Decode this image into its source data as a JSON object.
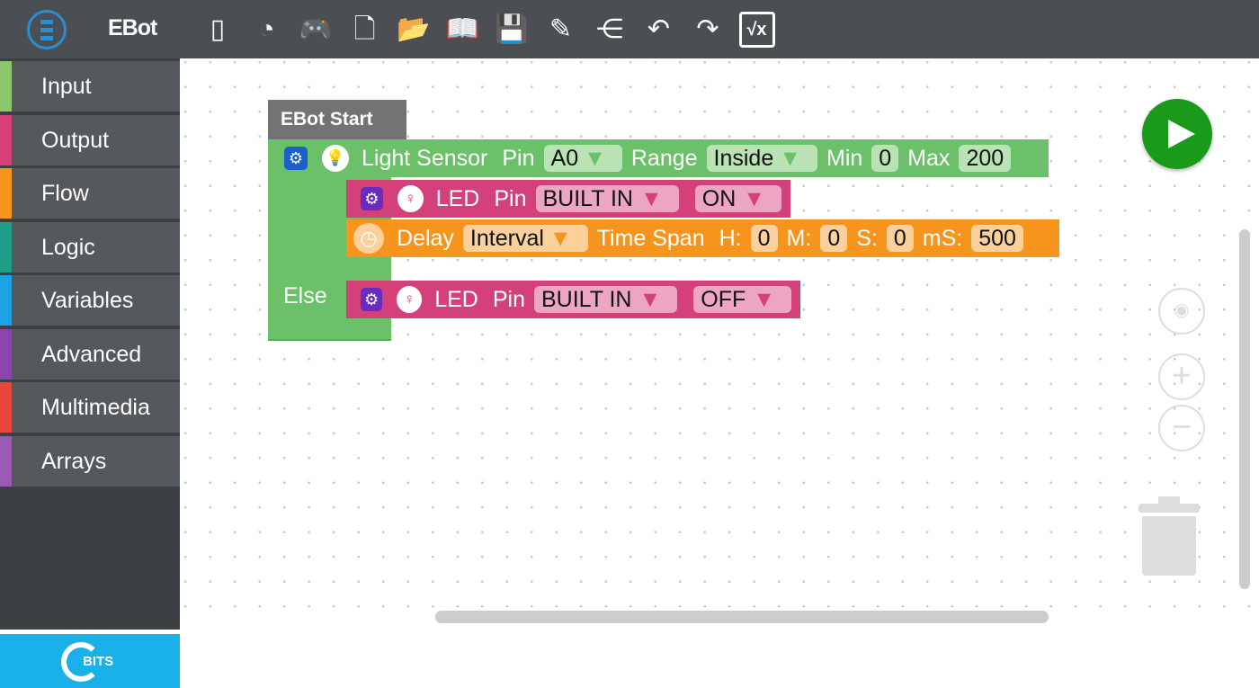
{
  "app": {
    "brand": "EBot",
    "logo_lettering": "BITS"
  },
  "toolbar": [
    {
      "icon": "board-icon",
      "glyph": "▯"
    },
    {
      "icon": "pie-chart-icon",
      "glyph": "◔"
    },
    {
      "icon": "gamepad-icon",
      "glyph": "🎮"
    },
    {
      "icon": "new-file-icon",
      "glyph": "🗋"
    },
    {
      "icon": "open-folder-icon",
      "glyph": "📂"
    },
    {
      "icon": "book-icon",
      "glyph": "📖"
    },
    {
      "icon": "save-icon",
      "glyph": "💾"
    },
    {
      "icon": "save-as-icon",
      "glyph": "✎"
    },
    {
      "icon": "share-icon",
      "glyph": "⋲"
    },
    {
      "icon": "undo-icon",
      "glyph": "↶"
    },
    {
      "icon": "redo-icon",
      "glyph": "↷"
    },
    {
      "icon": "formula-icon",
      "glyph": "√x"
    }
  ],
  "sidebar": {
    "items": [
      {
        "label": "Input",
        "color": "#8cc66d"
      },
      {
        "label": "Output",
        "color": "#d8407a"
      },
      {
        "label": "Flow",
        "color": "#f7941d"
      },
      {
        "label": "Logic",
        "color": "#1f9e89"
      },
      {
        "label": "Variables",
        "color": "#1ba3e3"
      },
      {
        "label": "Advanced",
        "color": "#8e44ad"
      },
      {
        "label": "Multimedia",
        "color": "#e8453c"
      },
      {
        "label": "Arrays",
        "color": "#9b59b6"
      }
    ]
  },
  "blocks": {
    "start": "EBot Start",
    "sensor": {
      "label": "Light Sensor",
      "pin_label": "Pin",
      "pin": "A0",
      "range_label": "Range",
      "range": "Inside",
      "min_label": "Min",
      "min": "0",
      "max_label": "Max",
      "max": "200"
    },
    "led_on": {
      "label": "LED",
      "pin_label": "Pin",
      "pin": "BUILT IN",
      "state": "ON"
    },
    "delay": {
      "label": "Delay",
      "mode": "Interval",
      "span_label": "Time Span",
      "h_label": "H:",
      "h": "0",
      "m_label": "M:",
      "m": "0",
      "s_label": "S:",
      "s": "0",
      "ms_label": "mS:",
      "ms": "500"
    },
    "else_label": "Else",
    "led_off": {
      "label": "LED",
      "pin_label": "Pin",
      "pin": "BUILT IN",
      "state": "OFF"
    }
  },
  "colors": {
    "green": "#6cc06a",
    "pink": "#d4407a",
    "orange": "#f7941d",
    "run": "#1a9a1a"
  }
}
